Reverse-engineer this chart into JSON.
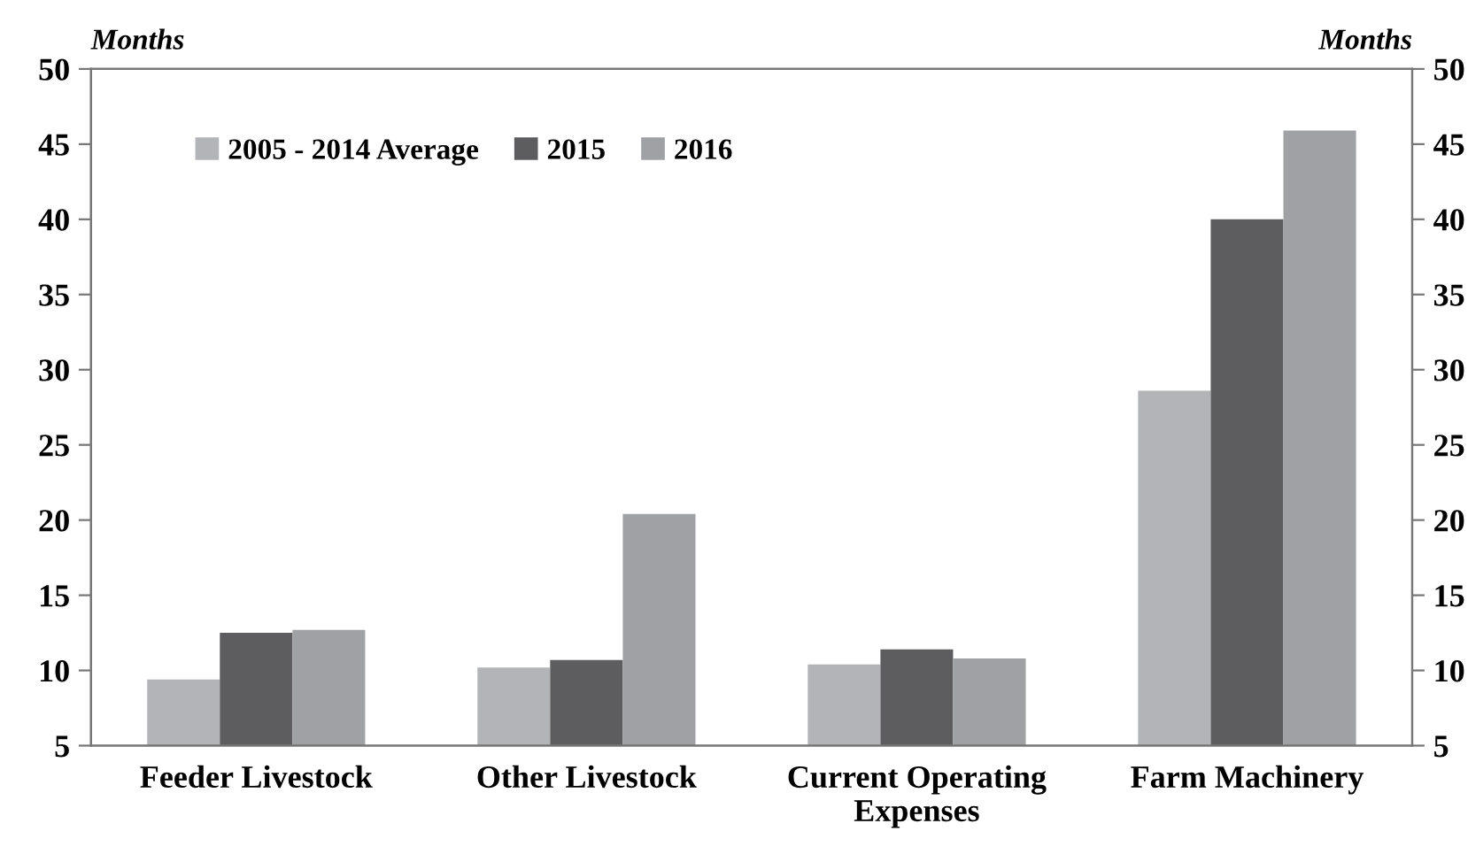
{
  "chart_data": {
    "type": "bar",
    "ylabel": "Months",
    "y2label": "Months",
    "categories": [
      "Feeder Livestock",
      "Other Livestock",
      "Current Operating\nExpenses",
      "Farm Machinery"
    ],
    "series": [
      {
        "name": "2005 - 2014 Average",
        "color": "#b3b4b8",
        "values": [
          9.4,
          10.2,
          10.4,
          28.6
        ]
      },
      {
        "name": "2015",
        "color": "#5d5d60",
        "values": [
          12.5,
          10.7,
          11.4,
          40.0
        ]
      },
      {
        "name": "2016",
        "color": "#a0a1a5",
        "values": [
          12.7,
          20.4,
          10.8,
          45.9
        ]
      }
    ],
    "ylim": [
      5,
      50
    ],
    "yticks": [
      5,
      10,
      15,
      20,
      25,
      30,
      35,
      40,
      45,
      50
    ],
    "y2lim": [
      5,
      50
    ],
    "y2ticks": [
      5,
      10,
      15,
      20,
      25,
      30,
      35,
      40,
      45,
      50
    ],
    "grid": false,
    "legend": "top left"
  }
}
